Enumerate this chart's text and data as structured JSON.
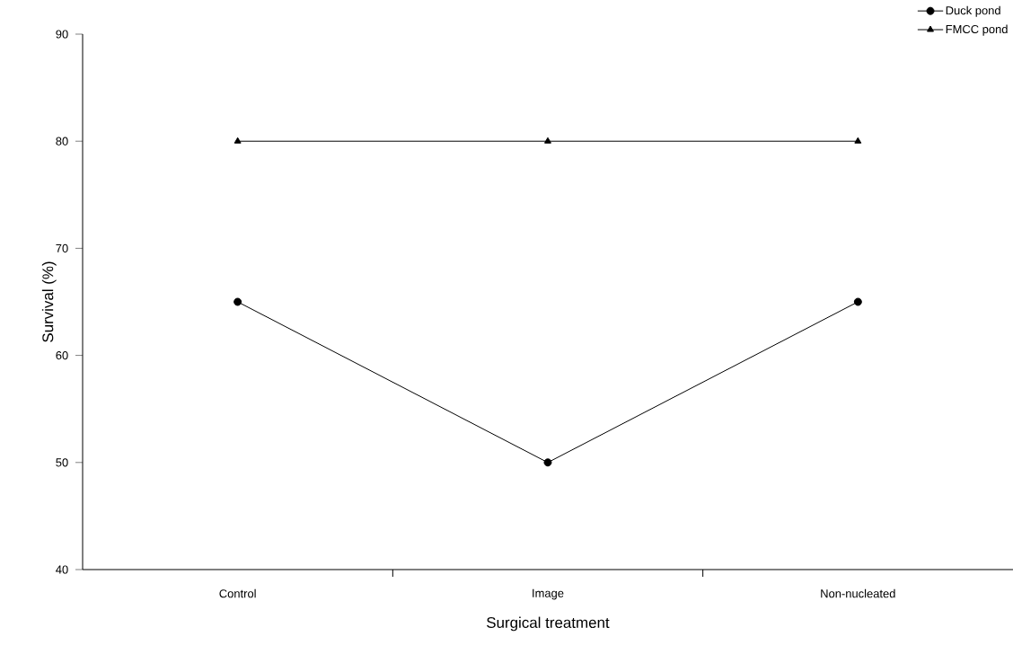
{
  "chart_data": {
    "type": "line",
    "xlabel": "Surgical treatment",
    "ylabel": "Survival (%)",
    "categories": [
      "Control",
      "Image",
      "Non-nucleated"
    ],
    "series": [
      {
        "name": "Duck pond",
        "color": "#000000",
        "marker": "circle",
        "values": [
          65,
          50,
          65
        ]
      },
      {
        "name": "FMCC pond",
        "color": "#000000",
        "marker": "triangle",
        "values": [
          80,
          80,
          80
        ]
      }
    ],
    "ylim": [
      40,
      90
    ],
    "yticks": [
      40,
      50,
      60,
      70,
      80,
      90
    ],
    "legend": "top right",
    "line_style": "solid"
  }
}
